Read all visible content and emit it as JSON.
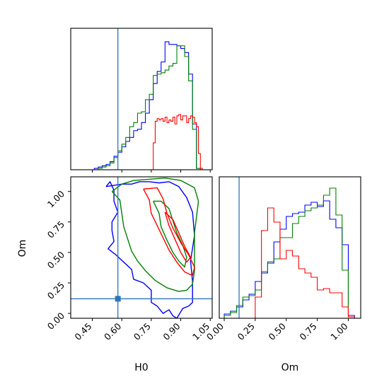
{
  "chart_data": {
    "type": "corner",
    "parameters": [
      "H0",
      "Om"
    ],
    "axis_labels": {
      "x_bottom_left": "H0",
      "x_bottom_right": "Om",
      "y_bottom_left": "Om"
    },
    "truth": {
      "H0": 0.58,
      "Om": 0.12,
      "color": "#2e75b6"
    },
    "series_colors": [
      "#0000ff",
      "#008000",
      "#ff0000"
    ],
    "h0_axis": {
      "xlim": [
        0.34,
        1.06
      ],
      "tick_values": [
        0.45,
        0.6,
        0.75,
        0.9,
        1.05
      ],
      "tick_labels": [
        "0.45",
        "0.60",
        "0.75",
        "0.90",
        "1.05"
      ]
    },
    "om_axis": {
      "xlim": [
        -0.04,
        1.1
      ],
      "tick_values": [
        0.0,
        0.25,
        0.5,
        0.75,
        1.0
      ],
      "tick_labels": [
        "0.00",
        "0.25",
        "0.50",
        "0.75",
        "1.00"
      ]
    },
    "scatter_panel": {
      "ylim": [
        -0.04,
        1.12
      ],
      "ytick_values": [
        0.0,
        0.25,
        0.5,
        0.75,
        1.0
      ],
      "ytick_labels": [
        "0.00",
        "0.25",
        "0.50",
        "0.75",
        "1.00"
      ]
    },
    "histograms": {
      "H0": {
        "ymax": 1.05,
        "series": [
          {
            "color": "#0000ff",
            "edges": [
              0.46,
              0.48,
              0.5,
              0.52,
              0.54,
              0.56,
              0.58,
              0.6,
              0.62,
              0.64,
              0.66,
              0.68,
              0.7,
              0.72,
              0.74,
              0.76,
              0.78,
              0.8,
              0.82,
              0.84,
              0.86,
              0.88,
              0.9,
              0.92,
              0.94,
              0.96,
              0.98,
              1.0,
              1.02
            ],
            "counts": [
              0.01,
              0.02,
              0.03,
              0.04,
              0.06,
              0.1,
              0.13,
              0.17,
              0.21,
              0.24,
              0.29,
              0.3,
              0.35,
              0.42,
              0.52,
              0.64,
              0.73,
              0.8,
              0.95,
              0.93,
              0.93,
              0.92,
              0.9,
              0.87,
              0.71,
              0.34,
              0.01,
              0.0
            ]
          },
          {
            "color": "#008000",
            "edges": [
              0.46,
              0.48,
              0.5,
              0.52,
              0.54,
              0.56,
              0.58,
              0.6,
              0.62,
              0.64,
              0.66,
              0.68,
              0.7,
              0.72,
              0.74,
              0.76,
              0.78,
              0.8,
              0.82,
              0.84,
              0.86,
              0.88,
              0.9,
              0.92,
              0.94,
              0.96,
              0.98,
              1.0,
              1.02
            ],
            "counts": [
              0.0,
              0.01,
              0.02,
              0.03,
              0.05,
              0.09,
              0.14,
              0.19,
              0.24,
              0.32,
              0.35,
              0.42,
              0.43,
              0.52,
              0.56,
              0.7,
              0.71,
              0.72,
              0.74,
              0.77,
              0.79,
              0.92,
              0.92,
              0.84,
              0.66,
              0.3,
              0.01,
              0.0
            ]
          },
          {
            "color": "#ff0000",
            "edges": [
              0.76,
              0.77,
              0.78,
              0.79,
              0.8,
              0.81,
              0.82,
              0.83,
              0.84,
              0.85,
              0.86,
              0.87,
              0.88,
              0.89,
              0.9,
              0.91,
              0.92,
              0.93,
              0.94,
              0.95,
              0.96,
              0.97,
              0.98,
              0.99,
              1.0,
              1.01
            ],
            "counts": [
              0.2,
              0.36,
              0.38,
              0.37,
              0.38,
              0.36,
              0.39,
              0.35,
              0.37,
              0.36,
              0.39,
              0.34,
              0.4,
              0.41,
              0.37,
              0.4,
              0.4,
              0.35,
              0.38,
              0.4,
              0.39,
              0.35,
              0.32,
              0.12,
              0.01
            ]
          }
        ]
      },
      "Om": {
        "ymax": 1.0,
        "series": [
          {
            "color": "#0000ff",
            "edges": [
              0.0,
              0.05,
              0.1,
              0.15,
              0.2,
              0.25,
              0.3,
              0.35,
              0.4,
              0.45,
              0.5,
              0.55,
              0.6,
              0.65,
              0.7,
              0.75,
              0.8,
              0.85,
              0.9,
              0.95,
              1.0,
              1.05
            ],
            "counts": [
              0.03,
              0.05,
              0.08,
              0.13,
              0.17,
              0.26,
              0.32,
              0.39,
              0.54,
              0.63,
              0.72,
              0.74,
              0.75,
              0.8,
              0.82,
              0.79,
              0.83,
              0.7,
              0.64,
              0.52,
              0.02
            ]
          },
          {
            "color": "#008000",
            "edges": [
              0.0,
              0.05,
              0.1,
              0.15,
              0.2,
              0.25,
              0.3,
              0.35,
              0.4,
              0.45,
              0.5,
              0.55,
              0.6,
              0.65,
              0.7,
              0.75,
              0.8,
              0.85,
              0.9,
              0.95,
              1.0,
              1.05
            ],
            "counts": [
              0.02,
              0.04,
              0.09,
              0.15,
              0.16,
              0.2,
              0.33,
              0.4,
              0.42,
              0.57,
              0.57,
              0.67,
              0.72,
              0.76,
              0.78,
              0.8,
              0.87,
              0.92,
              0.73,
              0.34,
              0.01
            ]
          },
          {
            "color": "#ff0000",
            "edges": [
              0.15,
              0.2,
              0.25,
              0.3,
              0.35,
              0.4,
              0.45,
              0.5,
              0.55,
              0.6,
              0.65,
              0.7,
              0.75,
              0.8,
              0.85,
              0.9,
              0.95,
              1.0,
              1.05
            ],
            "counts": [
              0.0,
              0.0,
              0.15,
              0.62,
              0.78,
              0.68,
              0.42,
              0.48,
              0.44,
              0.35,
              0.32,
              0.29,
              0.2,
              0.21,
              0.18,
              0.18,
              0.08,
              0.01
            ]
          }
        ]
      }
    },
    "contours": [
      {
        "color": "#0000ff",
        "points": [
          [
            0.52,
            1.04
          ],
          [
            0.54,
            1.08
          ],
          [
            0.56,
            1.01
          ],
          [
            0.56,
            0.92
          ],
          [
            0.58,
            0.83
          ],
          [
            0.55,
            0.75
          ],
          [
            0.55,
            0.68
          ],
          [
            0.56,
            0.59
          ],
          [
            0.53,
            0.53
          ],
          [
            0.57,
            0.48
          ],
          [
            0.61,
            0.42
          ],
          [
            0.65,
            0.36
          ],
          [
            0.66,
            0.28
          ],
          [
            0.71,
            0.25
          ],
          [
            0.75,
            0.19
          ],
          [
            0.75,
            0.09
          ],
          [
            0.78,
            0.06
          ],
          [
            0.81,
            0.0
          ],
          [
            0.84,
            0.03
          ],
          [
            0.86,
            -0.02
          ],
          [
            0.88,
            -0.04
          ],
          [
            0.91,
            0.04
          ],
          [
            0.94,
            0.06
          ],
          [
            0.96,
            0.09
          ],
          [
            0.96,
            0.26
          ],
          [
            0.95,
            0.43
          ],
          [
            0.97,
            0.64
          ],
          [
            0.96,
            0.83
          ],
          [
            0.93,
            0.95
          ],
          [
            0.89,
            1.04
          ],
          [
            0.84,
            1.08
          ],
          [
            0.79,
            1.07
          ],
          [
            0.74,
            1.08
          ],
          [
            0.69,
            1.08
          ],
          [
            0.65,
            1.06
          ],
          [
            0.6,
            1.06
          ],
          [
            0.56,
            1.05
          ],
          [
            0.52,
            1.04
          ]
        ]
      },
      {
        "color": "#008000",
        "points": [
          [
            0.55,
            1.0
          ],
          [
            0.59,
            0.93
          ],
          [
            0.6,
            0.82
          ],
          [
            0.61,
            0.71
          ],
          [
            0.63,
            0.61
          ],
          [
            0.65,
            0.51
          ],
          [
            0.68,
            0.43
          ],
          [
            0.72,
            0.35
          ],
          [
            0.77,
            0.27
          ],
          [
            0.83,
            0.21
          ],
          [
            0.89,
            0.18
          ],
          [
            0.93,
            0.19
          ],
          [
            0.96,
            0.24
          ],
          [
            0.97,
            0.35
          ],
          [
            0.97,
            0.5
          ],
          [
            0.97,
            0.66
          ],
          [
            0.98,
            0.79
          ],
          [
            0.99,
            0.92
          ],
          [
            0.97,
            1.03
          ],
          [
            0.9,
            1.09
          ],
          [
            0.82,
            1.11
          ],
          [
            0.74,
            1.1
          ],
          [
            0.66,
            1.09
          ],
          [
            0.6,
            1.06
          ],
          [
            0.55,
            1.0
          ]
        ]
      },
      {
        "color": "#008000",
        "points": [
          [
            0.76,
            0.92
          ],
          [
            0.79,
            0.82
          ],
          [
            0.8,
            0.71
          ],
          [
            0.83,
            0.6
          ],
          [
            0.86,
            0.5
          ],
          [
            0.89,
            0.43
          ],
          [
            0.92,
            0.38
          ],
          [
            0.93,
            0.46
          ],
          [
            0.91,
            0.56
          ],
          [
            0.88,
            0.66
          ],
          [
            0.86,
            0.76
          ],
          [
            0.84,
            0.86
          ],
          [
            0.8,
            0.92
          ],
          [
            0.76,
            0.92
          ]
        ]
      },
      {
        "color": "#ff0000",
        "points": [
          [
            0.71,
            1.02
          ],
          [
            0.74,
            0.93
          ],
          [
            0.75,
            0.82
          ],
          [
            0.78,
            0.72
          ],
          [
            0.81,
            0.62
          ],
          [
            0.84,
            0.52
          ],
          [
            0.88,
            0.42
          ],
          [
            0.92,
            0.34
          ],
          [
            0.96,
            0.31
          ],
          [
            0.97,
            0.38
          ],
          [
            0.94,
            0.48
          ],
          [
            0.9,
            0.58
          ],
          [
            0.86,
            0.7
          ],
          [
            0.83,
            0.82
          ],
          [
            0.81,
            0.94
          ],
          [
            0.78,
            1.03
          ],
          [
            0.71,
            1.02
          ]
        ]
      },
      {
        "color": "#ff0000",
        "points": [
          [
            0.82,
            0.83
          ],
          [
            0.84,
            0.72
          ],
          [
            0.87,
            0.61
          ],
          [
            0.9,
            0.5
          ],
          [
            0.93,
            0.42
          ],
          [
            0.95,
            0.46
          ],
          [
            0.92,
            0.55
          ],
          [
            0.89,
            0.66
          ],
          [
            0.86,
            0.77
          ],
          [
            0.82,
            0.83
          ]
        ]
      }
    ]
  }
}
